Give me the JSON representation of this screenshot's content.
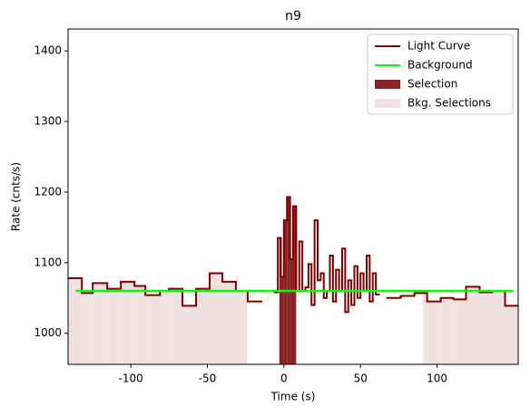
{
  "chart_data": {
    "type": "step",
    "title": "n9",
    "xlabel": "Time (s)",
    "ylabel": "Rate (cnts/s)",
    "xlim": [
      -141,
      153
    ],
    "ylim": [
      956,
      1431
    ],
    "xticks": [
      -100,
      -50,
      0,
      50,
      100
    ],
    "yticks": [
      1000,
      1100,
      1200,
      1300,
      1400
    ],
    "legend": "upper right",
    "series": [
      {
        "name": "Light Curve",
        "color": "#800000",
        "x": [
          -140.8,
          -132,
          -124.9,
          -115.4,
          -106.5,
          -97.6,
          -90.5,
          -81,
          -75.1,
          -66.3,
          -57.4,
          -48.5,
          -40.2,
          -31.4,
          -23.7,
          -14.8,
          -8,
          -6,
          -4,
          -2,
          0,
          2,
          4,
          6,
          8,
          10,
          12,
          14,
          16,
          18,
          20,
          22,
          24,
          26,
          28,
          30,
          32,
          34,
          36,
          38,
          40,
          42,
          44,
          46,
          48,
          50,
          52,
          54,
          56,
          58,
          60,
          62,
          67.5,
          76.3,
          85.2,
          93.5,
          102.4,
          110.7,
          118.9,
          127.8,
          136.1,
          144.4,
          152.7
        ],
        "values": [
          1078,
          1057,
          1071,
          1063,
          1073,
          1067,
          1054,
          1060,
          1063,
          1039,
          1063,
          1085,
          1073,
          1060,
          1045,
          null,
          1060,
          1058,
          1135,
          1080,
          1160,
          1193,
          1105,
          1180,
          1060,
          1130,
          1060,
          1065,
          1098,
          1040,
          1160,
          1075,
          1085,
          1050,
          1060,
          1110,
          1045,
          1090,
          1060,
          1120,
          1030,
          1075,
          1040,
          1095,
          1050,
          1085,
          1060,
          1110,
          1045,
          1085,
          1055,
          null,
          1050,
          1053,
          1057,
          1045,
          1050,
          1048,
          1066,
          1058,
          1060,
          1039,
          null
        ]
      },
      {
        "name": "Background",
        "color": "#00ff00",
        "x": [
          -136,
          150
        ],
        "values": [
          1060,
          1060
        ]
      }
    ],
    "selection": {
      "name": "Selection",
      "color": "#8b2323",
      "range": [
        -3,
        8
      ]
    },
    "bkg_selection": {
      "name": "Bkg. Selections",
      "color": "#efe1e1",
      "ranges": [
        [
          -141,
          -24
        ],
        [
          91,
          153
        ]
      ]
    }
  }
}
